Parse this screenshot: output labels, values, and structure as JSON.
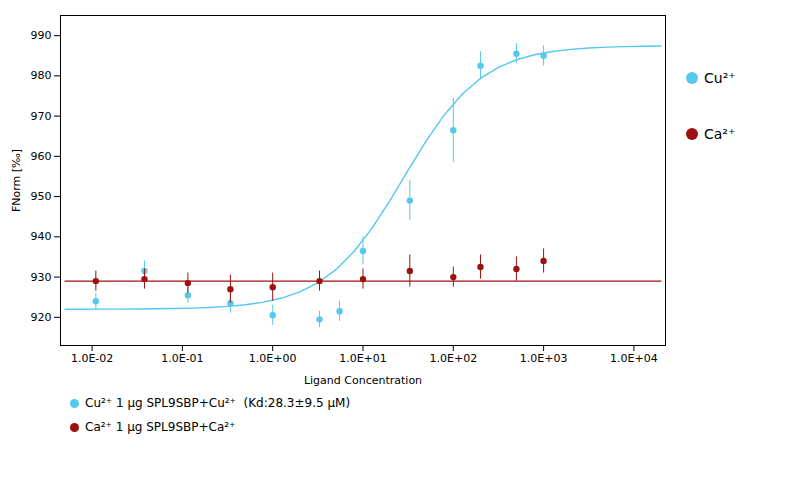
{
  "chart_data": {
    "type": "scatter",
    "xlabel": "Ligand Concentration",
    "ylabel": "FNorm [‰]",
    "log": "x",
    "grid": false,
    "legend": "right",
    "xlim": [
      0.004467,
      22387.21
    ],
    "ylim": [
      913,
      995
    ],
    "xticks": [
      {
        "value": 0.01,
        "label": "1.0E-02"
      },
      {
        "value": 0.1,
        "label": "1.0E-01"
      },
      {
        "value": 1,
        "label": "1.0E+00"
      },
      {
        "value": 10,
        "label": "1.0E+01"
      },
      {
        "value": 100,
        "label": "1.0E+02"
      },
      {
        "value": 1000,
        "label": "1.0E+03"
      },
      {
        "value": 10000,
        "label": "1.0E+04"
      }
    ],
    "yticks": [
      920,
      930,
      940,
      950,
      960,
      970,
      980,
      990
    ],
    "series": [
      {
        "type": "line",
        "color": "#55c8f0",
        "x": [
          0.0050119,
          0.0079433,
          0.012589,
          0.019953,
          0.031623,
          0.050119,
          0.079433,
          0.12589,
          0.19953,
          0.31623,
          0.50119,
          0.79433,
          1.25893,
          1.99526,
          3.16228,
          5.01187,
          7.94328,
          12.5893,
          19.9526,
          31.6228,
          50.1187,
          79.4328,
          125.893,
          199.526,
          316.228,
          501.187,
          794.328,
          1258.93,
          1995.26,
          3162.28,
          5011.87,
          7943.28,
          12589.3,
          19952.6
        ],
        "values": [
          922.01,
          922.02,
          922.03,
          922.05,
          922.07,
          922.12,
          922.18,
          922.29,
          922.46,
          922.72,
          923.14,
          923.79,
          924.79,
          926.31,
          928.58,
          931.85,
          936.36,
          942.17,
          949.08,
          956.57,
          963.86,
          970.29,
          975.48,
          979.36,
          982.12,
          984.0,
          985.25,
          986.06,
          986.58,
          986.92,
          987.13,
          987.27,
          987.35,
          987.41
        ]
      },
      {
        "type": "line",
        "color": "#a01010",
        "x": [
          0.0050119,
          19952.6
        ],
        "values": [
          929.0,
          929.0
        ]
      },
      {
        "name": "Cu²⁺",
        "type": "scatter",
        "color": "#55c8f0",
        "x": [
          0.011,
          0.038,
          0.115,
          0.34,
          1.0,
          3.3,
          5.5,
          10.0,
          33.0,
          100.0,
          200.0,
          500.0,
          1000.0
        ],
        "values": [
          924.0,
          931.5,
          925.5,
          923.5,
          920.5,
          919.5,
          921.5,
          936.5,
          949.0,
          966.5,
          982.5,
          985.5,
          985.0
        ],
        "error": [
          2.0,
          2.5,
          2.0,
          2.5,
          2.5,
          2.0,
          2.5,
          3.5,
          5.0,
          8.0,
          3.5,
          2.5,
          2.5
        ]
      },
      {
        "name": "Ca²⁺",
        "type": "scatter",
        "color": "#a01010",
        "x": [
          0.011,
          0.038,
          0.115,
          0.34,
          1.0,
          3.3,
          10.0,
          33.0,
          100.0,
          200.0,
          500.0,
          1000.0
        ],
        "values": [
          929.0,
          929.5,
          928.5,
          927.0,
          927.5,
          929.0,
          929.5,
          931.5,
          930.0,
          932.5,
          932.0,
          934.0
        ],
        "error": [
          2.5,
          2.5,
          2.5,
          3.5,
          3.5,
          2.5,
          2.5,
          4.0,
          2.5,
          3.0,
          3.0,
          3.0
        ]
      }
    ],
    "annotations": [
      "Cu²⁺ 1 μg SPL9SBP+Cu²⁺  (Kd:28.3±9.5 μM)",
      "Ca²⁺ 1 μg SPL9SBP+Ca²⁺"
    ]
  }
}
